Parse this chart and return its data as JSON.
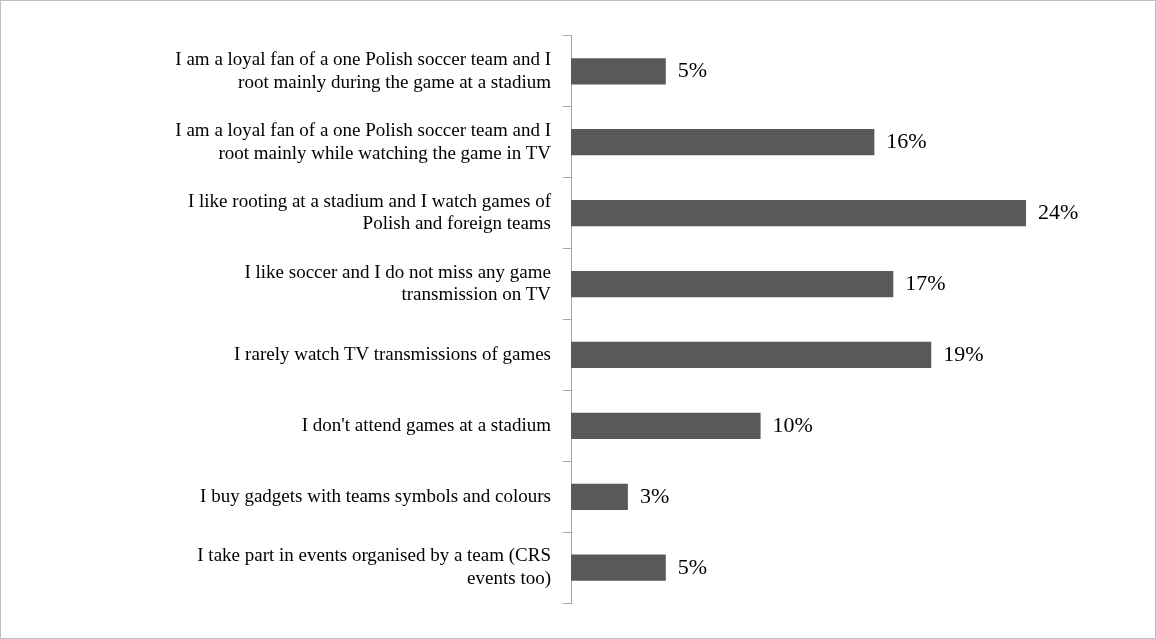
{
  "chart_data": {
    "type": "bar",
    "orientation": "horizontal",
    "categories": [
      "I am a loyal fan of a one Polish soccer team and I root mainly during the game at a stadium",
      "I am a loyal fan of a one Polish soccer team and I root mainly while watching the game in TV",
      "I like rooting at a stadium and I watch games of Polish and foreign teams",
      "I like soccer and I do not miss any game transmission on TV",
      "I rarely watch TV transmissions of games",
      "I don't attend games at a stadium",
      "I buy gadgets with teams symbols and colours",
      "I take part in events organised by a team (CRS events too)"
    ],
    "values": [
      5,
      16,
      24,
      17,
      19,
      10,
      3,
      5
    ],
    "value_labels": [
      "5%",
      "16%",
      "24%",
      "17%",
      "19%",
      "10%",
      "3%",
      "5%"
    ],
    "color": "#595959",
    "grid": false,
    "legend": false
  }
}
